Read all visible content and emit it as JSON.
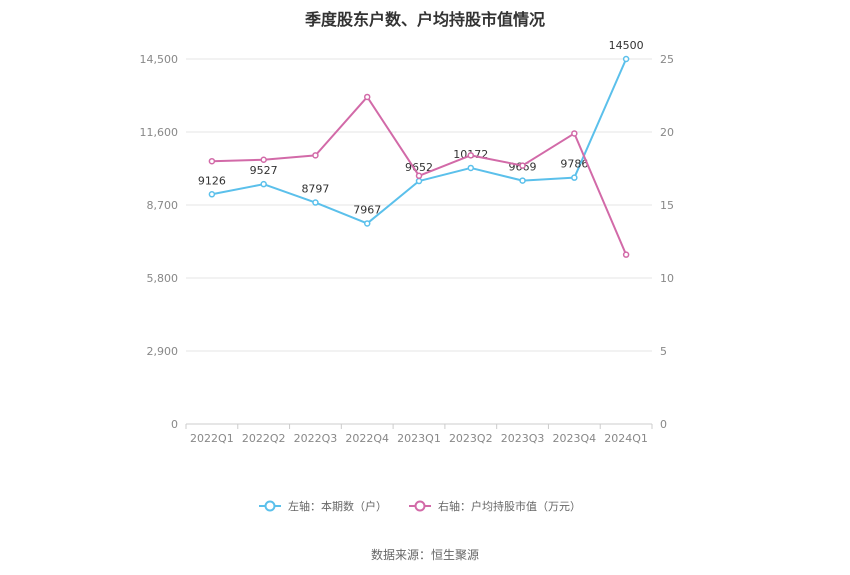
{
  "chart_data": {
    "type": "line",
    "title": "季度股东户数、户均持股市值情况",
    "categories": [
      "2022Q1",
      "2022Q2",
      "2022Q3",
      "2022Q4",
      "2023Q1",
      "2023Q2",
      "2023Q3",
      "2023Q4",
      "2024Q1"
    ],
    "series": [
      {
        "name": "左轴：本期数（户）",
        "axis": "left",
        "color": "#5bc0eb",
        "values": [
          9126,
          9527,
          8797,
          7967,
          9652,
          10172,
          9669,
          9786,
          14500
        ],
        "labels": [
          "9126",
          "9527",
          "8797",
          "7967",
          "9652",
          "10172",
          "9669",
          "9786",
          "14500"
        ]
      },
      {
        "name": "右轴：户均持股市值（万元）",
        "axis": "right",
        "color": "#d26aa8",
        "values": [
          18.0,
          18.1,
          18.4,
          22.4,
          17.0,
          18.4,
          17.7,
          19.9,
          11.6
        ]
      }
    ],
    "y_left": {
      "ticks": [
        0,
        2900,
        5800,
        8700,
        11600,
        14500
      ],
      "tick_labels": [
        "0",
        "2,900",
        "5,800",
        "8,700",
        "11,600",
        "14,500"
      ],
      "ylim": [
        0,
        14500
      ]
    },
    "y_right": {
      "ticks": [
        0,
        5,
        10,
        15,
        20,
        25
      ],
      "tick_labels": [
        "0",
        "5",
        "10",
        "15",
        "20",
        "25"
      ],
      "ylim": [
        0,
        25
      ]
    },
    "grid": true,
    "legend_position": "bottom"
  },
  "source": "数据来源：恒生聚源"
}
